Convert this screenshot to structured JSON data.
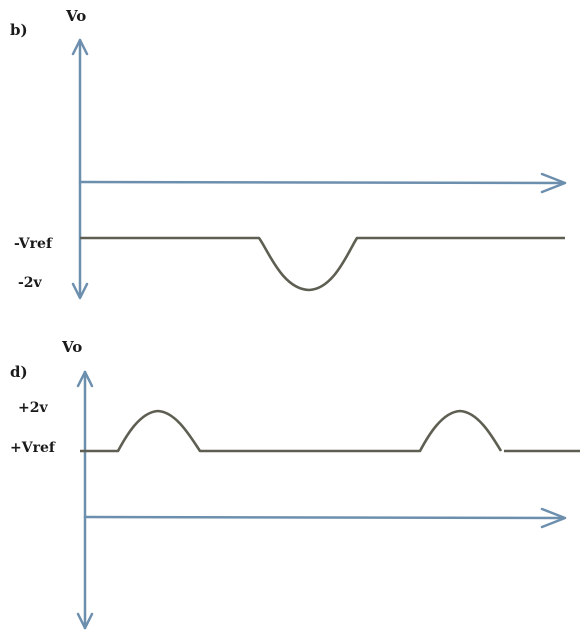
{
  "panel_b": {
    "label": "b)",
    "y_axis_label": "Vo",
    "tick_labels": {
      "ref": "-Vref",
      "peak": "-2v"
    }
  },
  "panel_d": {
    "label": "d)",
    "y_axis_label": "Vo",
    "tick_labels": {
      "peak": "+2v",
      "ref": "+Vref"
    }
  },
  "colors": {
    "axis": "#6d8fae",
    "signal": "#5e5f52",
    "text": "#1a1a1a"
  }
}
